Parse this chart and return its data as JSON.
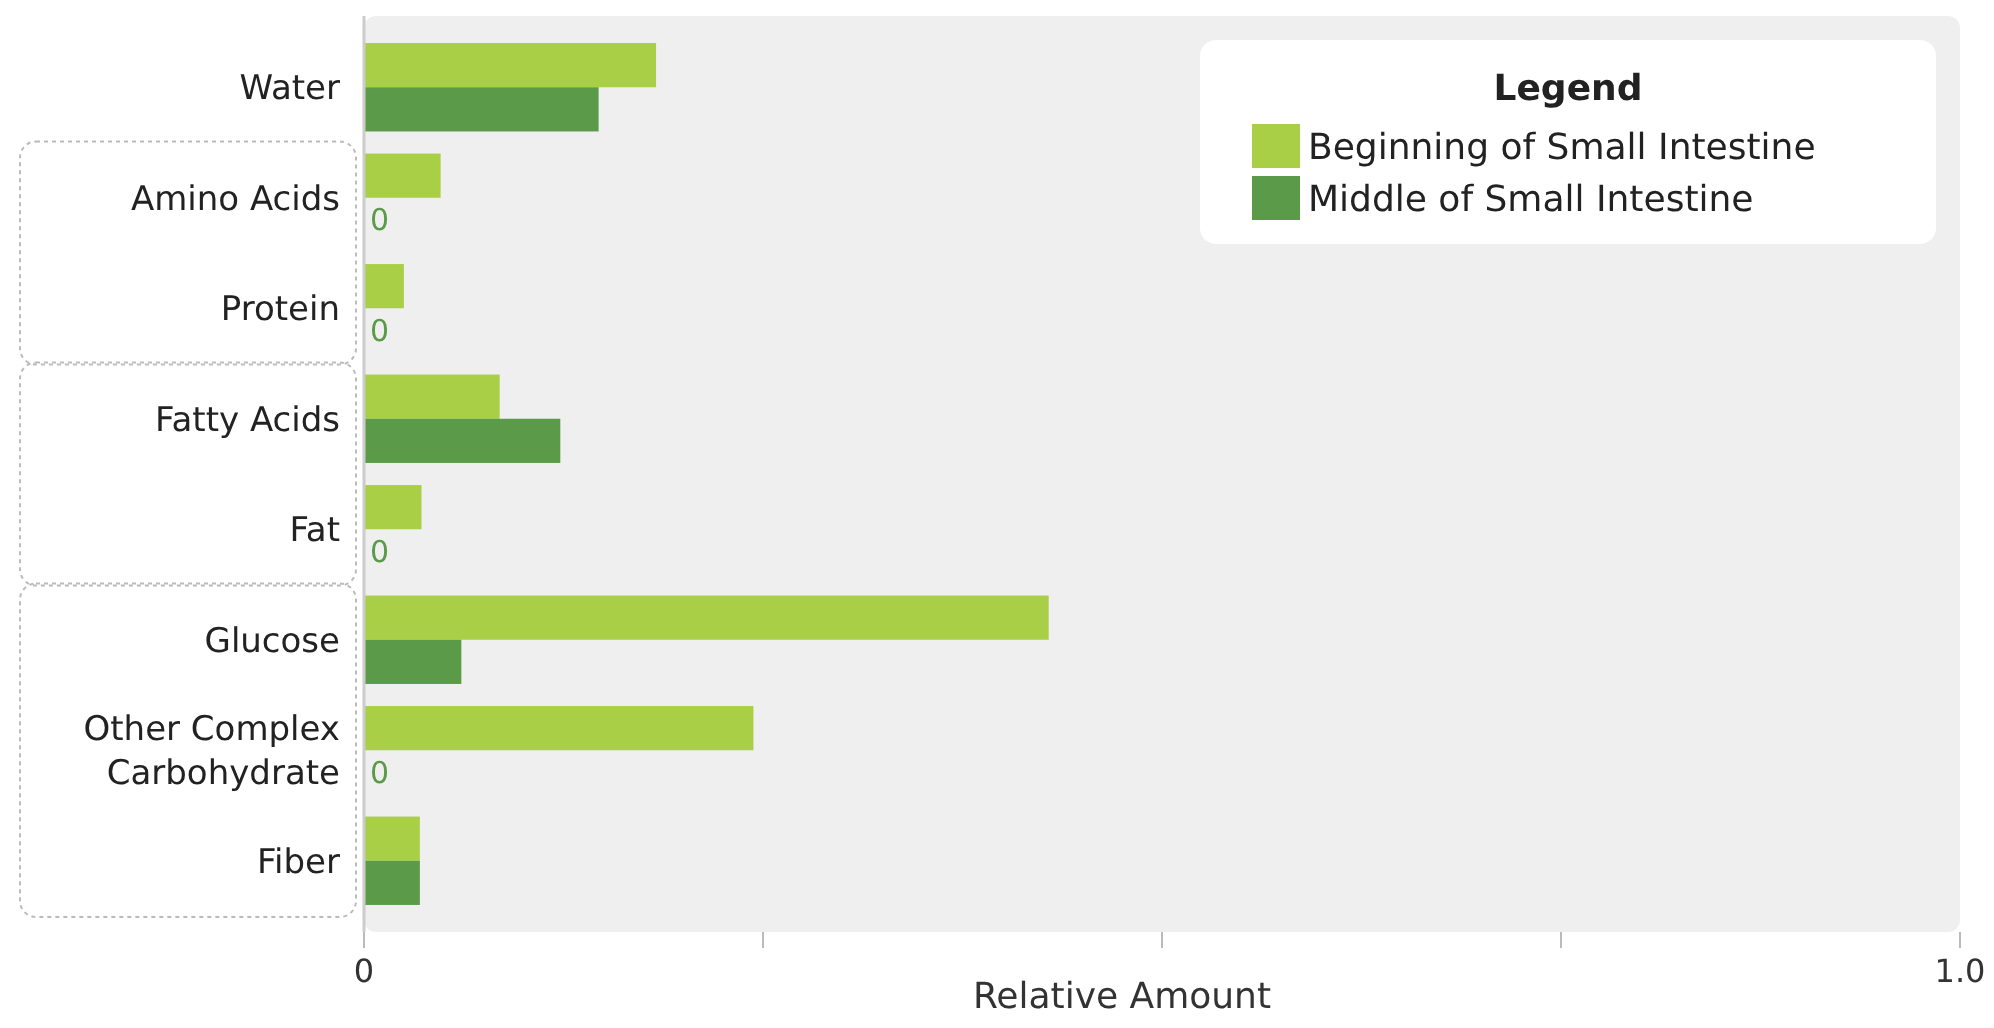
{
  "chart_data": {
    "type": "bar",
    "orientation": "horizontal",
    "xlabel": "Relative Amount",
    "categories": [
      "Water",
      "Amino Acids",
      "Protein",
      "Fatty Acids",
      "Fat",
      "Glucose",
      "Other Complex Carbohydrate",
      "Fiber"
    ],
    "series": [
      {
        "name": "Beginning of Small Intestine",
        "color": "#a8cf45",
        "values": [
          0.183,
          0.048,
          0.025,
          0.085,
          0.036,
          0.429,
          0.244,
          0.035
        ]
      },
      {
        "name": "Middle of Small Intestine",
        "color": "#5a9a48",
        "values": [
          0.147,
          0,
          0,
          0.123,
          0,
          0.061,
          0,
          0.035
        ],
        "value_labels": [
          null,
          "0",
          "0",
          null,
          "0",
          null,
          "0",
          null
        ]
      }
    ],
    "xlim": [
      0,
      1
    ],
    "xticks": [
      {
        "value": 0,
        "label": "0"
      },
      {
        "value": 0.25,
        "label": null
      },
      {
        "value": 0.5,
        "label": null
      },
      {
        "value": 0.75,
        "label": null
      },
      {
        "value": 1,
        "label": "1.0"
      }
    ],
    "legend": "top right",
    "legend_title": "Legend",
    "grid": false
  }
}
